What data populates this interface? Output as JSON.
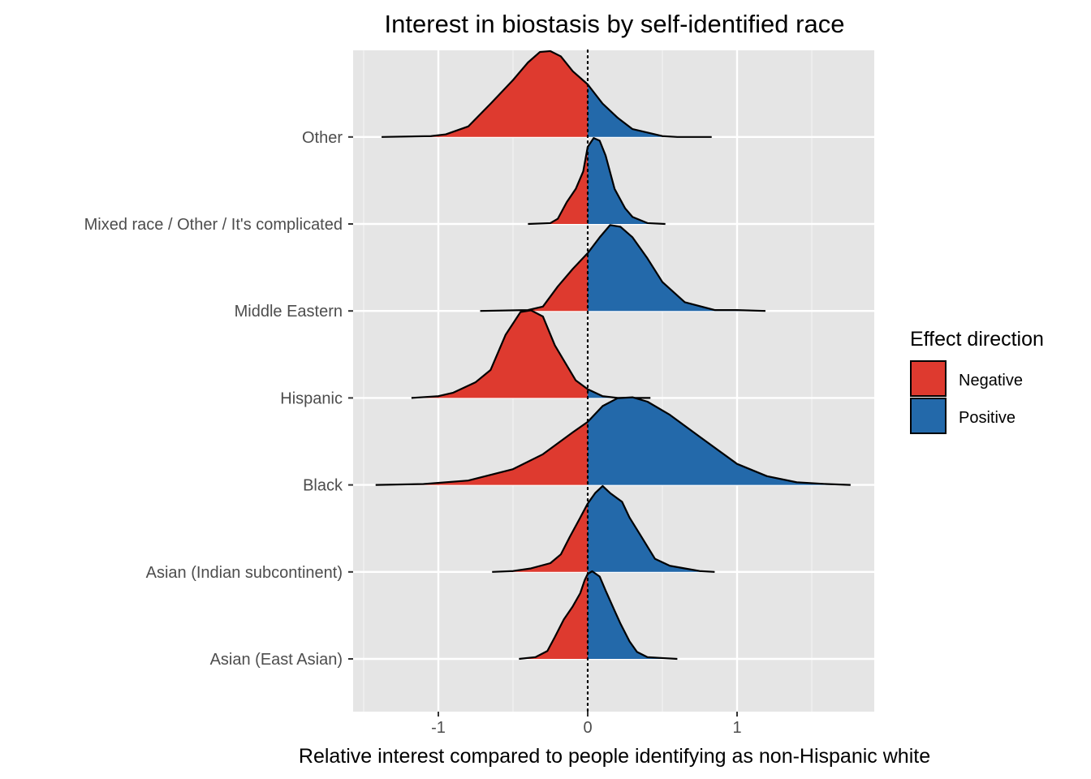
{
  "chart_data": {
    "type": "ridgeline",
    "title": "Interest in biostasis by self-identified race",
    "xlabel": "Relative interest compared to people identifying as non-Hispanic white",
    "ylabel": "",
    "xlim": [
      -1.5,
      1.93
    ],
    "x_ticks": [
      -1,
      0,
      1
    ],
    "x_tick_labels": [
      "-1",
      "0",
      "1"
    ],
    "reference_line": {
      "x": 0,
      "style": "dotted"
    },
    "grid": true,
    "categories": [
      "Asian (East Asian)",
      "Asian (Indian subcontinent)",
      "Black",
      "Hispanic",
      "Middle Eastern",
      "Mixed race / Other / It's complicated",
      "Other"
    ],
    "legend": {
      "title": "Effect direction",
      "placement": "right",
      "entries": [
        {
          "label": "Negative",
          "color": "#de3a2f"
        },
        {
          "label": "Positive",
          "color": "#2369aa"
        }
      ]
    },
    "series": [
      {
        "category": "Asian (East Asian)",
        "density": [
          [
            -0.46,
            0.0
          ],
          [
            -0.35,
            0.02
          ],
          [
            -0.27,
            0.09
          ],
          [
            -0.22,
            0.25
          ],
          [
            -0.16,
            0.45
          ],
          [
            -0.1,
            0.6
          ],
          [
            -0.05,
            0.75
          ],
          [
            -0.02,
            0.9
          ],
          [
            0.0,
            0.97
          ],
          [
            0.03,
            1.0
          ],
          [
            0.08,
            0.94
          ],
          [
            0.12,
            0.78
          ],
          [
            0.18,
            0.55
          ],
          [
            0.22,
            0.4
          ],
          [
            0.28,
            0.2
          ],
          [
            0.33,
            0.08
          ],
          [
            0.4,
            0.02
          ],
          [
            0.5,
            0.01
          ],
          [
            0.6,
            0.0
          ]
        ]
      },
      {
        "category": "Asian (Indian subcontinent)",
        "density": [
          [
            -0.64,
            0.0
          ],
          [
            -0.5,
            0.01
          ],
          [
            -0.38,
            0.04
          ],
          [
            -0.25,
            0.1
          ],
          [
            -0.18,
            0.2
          ],
          [
            -0.12,
            0.4
          ],
          [
            -0.05,
            0.62
          ],
          [
            0.0,
            0.78
          ],
          [
            0.05,
            0.9
          ],
          [
            0.1,
            0.98
          ],
          [
            0.15,
            0.9
          ],
          [
            0.23,
            0.8
          ],
          [
            0.28,
            0.62
          ],
          [
            0.36,
            0.4
          ],
          [
            0.45,
            0.15
          ],
          [
            0.55,
            0.07
          ],
          [
            0.65,
            0.04
          ],
          [
            0.75,
            0.01
          ],
          [
            0.85,
            0.0
          ]
        ]
      },
      {
        "category": "Black",
        "density": [
          [
            -1.42,
            0.0
          ],
          [
            -1.1,
            0.01
          ],
          [
            -0.8,
            0.05
          ],
          [
            -0.5,
            0.18
          ],
          [
            -0.3,
            0.35
          ],
          [
            -0.1,
            0.6
          ],
          [
            0.0,
            0.72
          ],
          [
            0.1,
            0.9
          ],
          [
            0.2,
            0.99
          ],
          [
            0.3,
            1.0
          ],
          [
            0.4,
            0.95
          ],
          [
            0.55,
            0.8
          ],
          [
            0.75,
            0.55
          ],
          [
            1.0,
            0.24
          ],
          [
            1.2,
            0.1
          ],
          [
            1.4,
            0.03
          ],
          [
            1.6,
            0.01
          ],
          [
            1.76,
            0.0
          ]
        ]
      },
      {
        "category": "Hispanic",
        "density": [
          [
            -1.18,
            0.0
          ],
          [
            -1.0,
            0.02
          ],
          [
            -0.9,
            0.06
          ],
          [
            -0.75,
            0.18
          ],
          [
            -0.65,
            0.32
          ],
          [
            -0.55,
            0.72
          ],
          [
            -0.45,
            0.98
          ],
          [
            -0.38,
            1.0
          ],
          [
            -0.3,
            0.93
          ],
          [
            -0.22,
            0.6
          ],
          [
            -0.15,
            0.4
          ],
          [
            -0.08,
            0.2
          ],
          [
            0.0,
            0.1
          ],
          [
            0.1,
            0.02
          ],
          [
            0.2,
            0.0
          ],
          [
            0.3,
            0.0
          ],
          [
            0.42,
            0.0
          ]
        ]
      },
      {
        "category": "Middle Eastern",
        "density": [
          [
            -0.72,
            0.0
          ],
          [
            -0.4,
            0.01
          ],
          [
            -0.3,
            0.05
          ],
          [
            -0.2,
            0.28
          ],
          [
            -0.1,
            0.48
          ],
          [
            0.0,
            0.66
          ],
          [
            0.08,
            0.84
          ],
          [
            0.15,
            0.98
          ],
          [
            0.22,
            0.96
          ],
          [
            0.3,
            0.84
          ],
          [
            0.4,
            0.6
          ],
          [
            0.5,
            0.33
          ],
          [
            0.65,
            0.1
          ],
          [
            0.85,
            0.01
          ],
          [
            1.0,
            0.01
          ],
          [
            1.19,
            0.0
          ]
        ]
      },
      {
        "category": "Mixed race / Other / It's complicated",
        "density": [
          [
            -0.4,
            0.0
          ],
          [
            -0.25,
            0.01
          ],
          [
            -0.2,
            0.06
          ],
          [
            -0.14,
            0.25
          ],
          [
            -0.08,
            0.4
          ],
          [
            -0.03,
            0.6
          ],
          [
            0.0,
            0.88
          ],
          [
            0.04,
            0.98
          ],
          [
            0.08,
            0.95
          ],
          [
            0.12,
            0.78
          ],
          [
            0.18,
            0.4
          ],
          [
            0.25,
            0.18
          ],
          [
            0.3,
            0.08
          ],
          [
            0.4,
            0.01
          ],
          [
            0.52,
            0.0
          ]
        ]
      },
      {
        "category": "Other",
        "density": [
          [
            -1.38,
            0.0
          ],
          [
            -1.05,
            0.01
          ],
          [
            -0.95,
            0.03
          ],
          [
            -0.8,
            0.12
          ],
          [
            -0.65,
            0.38
          ],
          [
            -0.5,
            0.65
          ],
          [
            -0.4,
            0.85
          ],
          [
            -0.32,
            0.97
          ],
          [
            -0.25,
            0.98
          ],
          [
            -0.18,
            0.92
          ],
          [
            -0.1,
            0.75
          ],
          [
            0.0,
            0.6
          ],
          [
            0.1,
            0.38
          ],
          [
            0.2,
            0.22
          ],
          [
            0.3,
            0.09
          ],
          [
            0.5,
            0.01
          ],
          [
            0.6,
            0.0
          ],
          [
            0.83,
            0.0
          ]
        ]
      }
    ]
  }
}
